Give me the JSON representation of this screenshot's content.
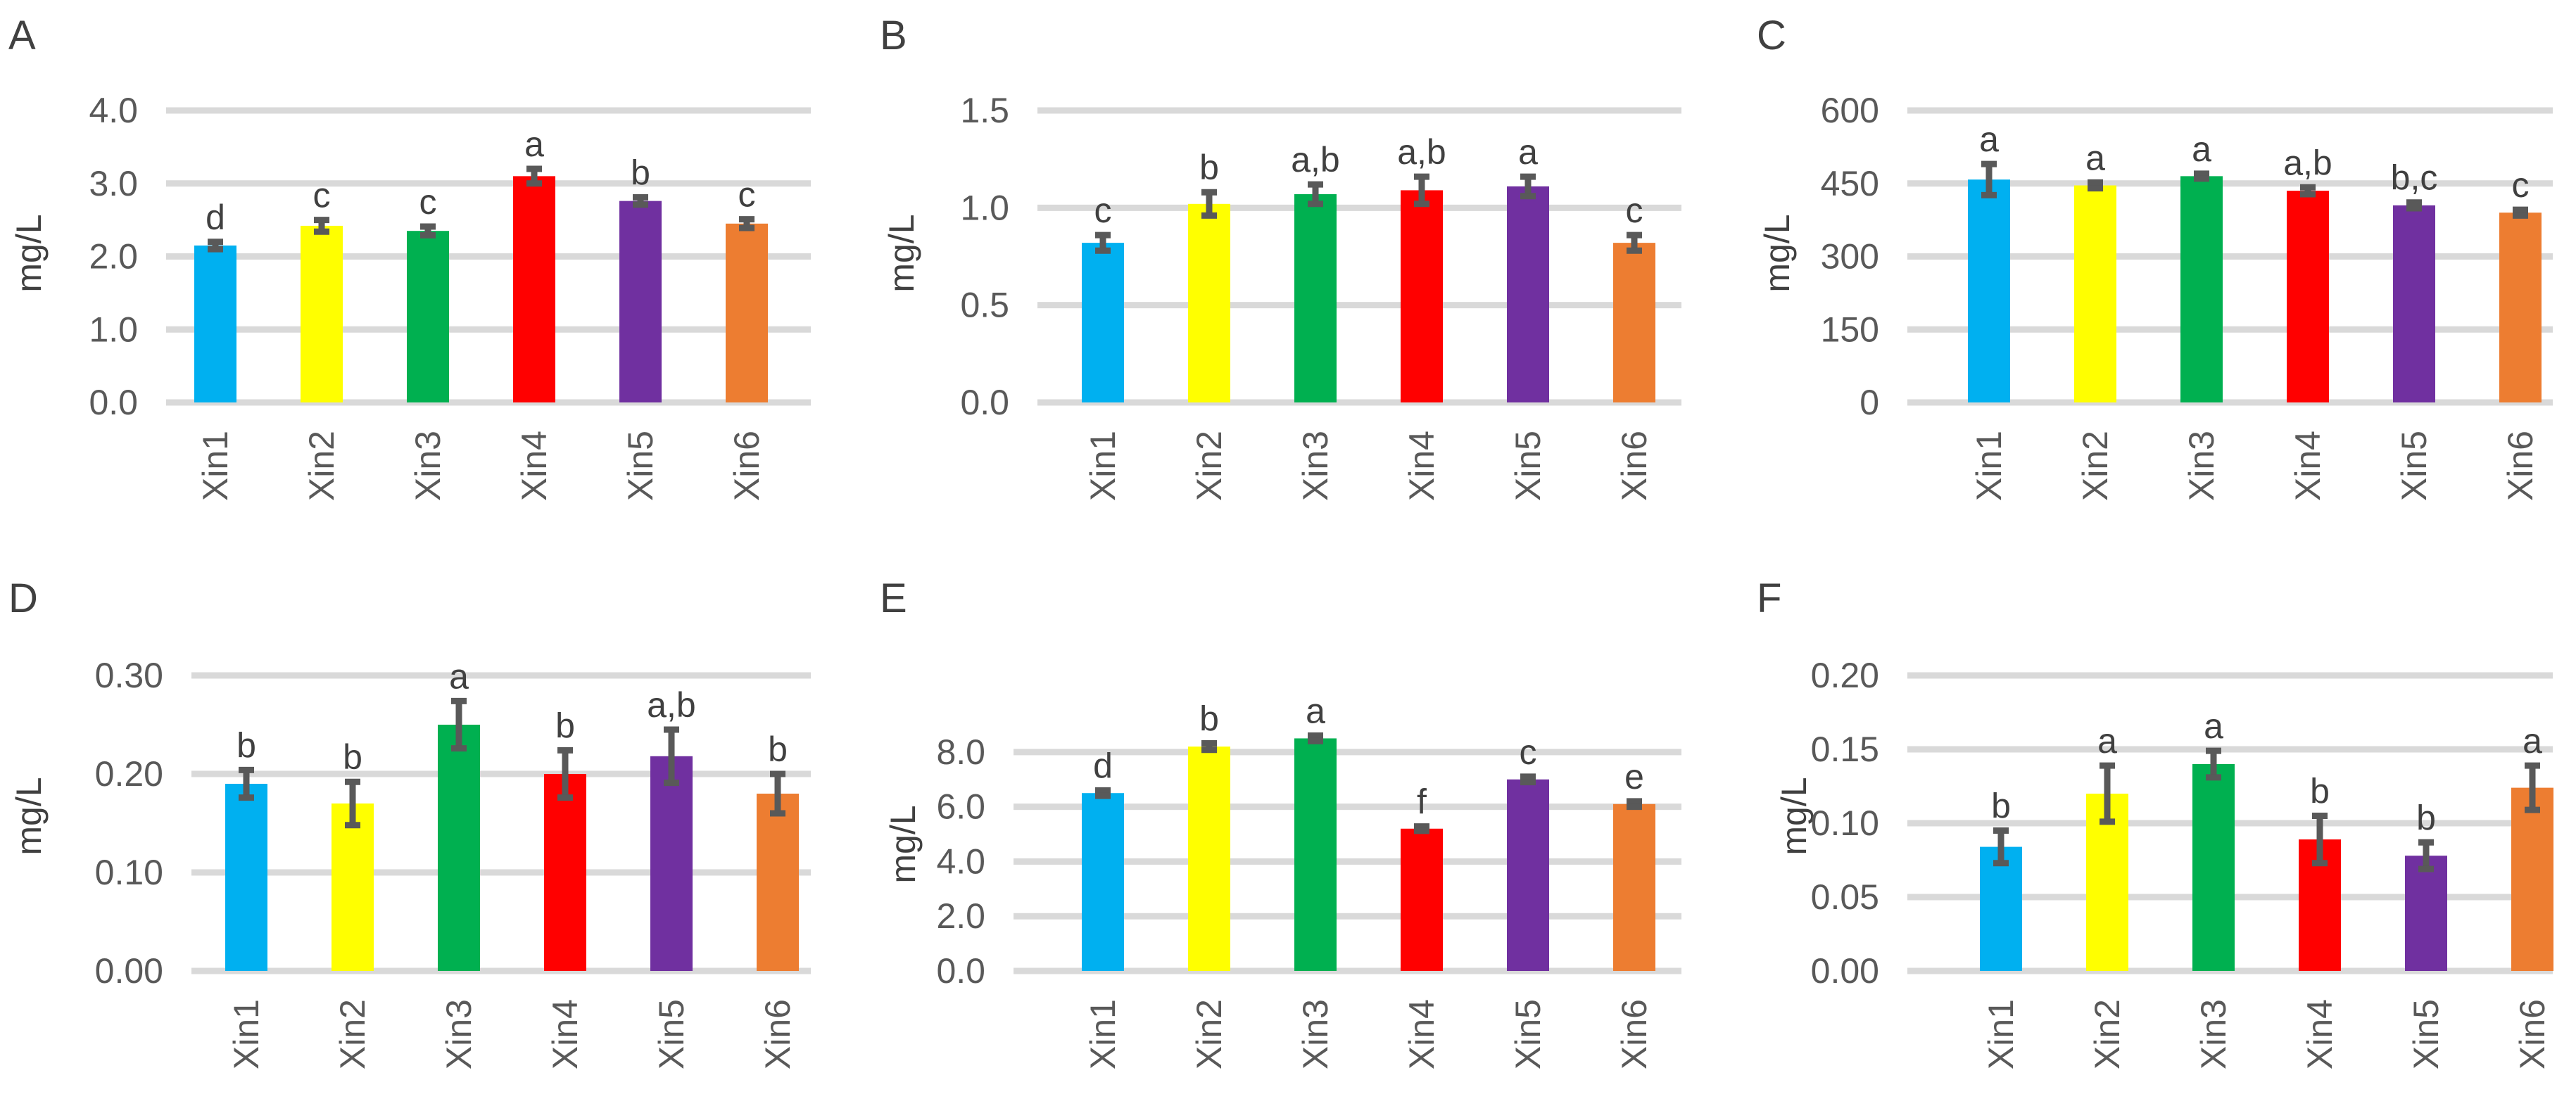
{
  "chart_data": [
    {
      "panel": "A",
      "type": "bar",
      "ylabel": "mg/L",
      "categories": [
        "Xin1",
        "Xin2",
        "Xin3",
        "Xin4",
        "Xin5",
        "Xin6"
      ],
      "values": [
        2.15,
        2.42,
        2.35,
        3.1,
        2.76,
        2.45
      ],
      "errors": [
        0.05,
        0.08,
        0.06,
        0.1,
        0.05,
        0.06
      ],
      "letters": [
        "d",
        "c",
        "c",
        "a",
        "b",
        "c"
      ],
      "ylim": [
        0,
        4.0
      ],
      "yticks": [
        "0.0",
        "1.0",
        "2.0",
        "3.0",
        "4.0"
      ],
      "colors": [
        "#00b0f0",
        "#ffff00",
        "#00b050",
        "#ff0000",
        "#7030a0",
        "#ed7d31"
      ]
    },
    {
      "panel": "B",
      "type": "bar",
      "ylabel": "mg/L",
      "categories": [
        "Xin1",
        "Xin2",
        "Xin3",
        "Xin4",
        "Xin5",
        "Xin6"
      ],
      "values": [
        0.82,
        1.02,
        1.07,
        1.09,
        1.11,
        0.82
      ],
      "errors": [
        0.04,
        0.06,
        0.05,
        0.07,
        0.05,
        0.04
      ],
      "letters": [
        "c",
        "b",
        "a,b",
        "a,b",
        "a",
        "c"
      ],
      "ylim": [
        0,
        1.5
      ],
      "yticks": [
        "0.0",
        "0.5",
        "1.0",
        "1.5"
      ],
      "colors": [
        "#00b0f0",
        "#ffff00",
        "#00b050",
        "#ff0000",
        "#7030a0",
        "#ed7d31"
      ]
    },
    {
      "panel": "C",
      "type": "bar",
      "ylabel": "mg/L",
      "categories": [
        "Xin1",
        "Xin2",
        "Xin3",
        "Xin4",
        "Xin5",
        "Xin6"
      ],
      "values": [
        458,
        446,
        465,
        435,
        405,
        390
      ],
      "errors": [
        32,
        6,
        5,
        7,
        6,
        6
      ],
      "letters": [
        "a",
        "a",
        "a",
        "a,b",
        "b,c",
        "c"
      ],
      "ylim": [
        0,
        600
      ],
      "yticks": [
        "0",
        "150",
        "300",
        "450",
        "600"
      ],
      "colors": [
        "#00b0f0",
        "#ffff00",
        "#00b050",
        "#ff0000",
        "#7030a0",
        "#ed7d31"
      ]
    },
    {
      "panel": "D",
      "type": "bar",
      "ylabel": "mg/L",
      "categories": [
        "Xin1",
        "Xin2",
        "Xin3",
        "Xin4",
        "Xin5",
        "Xin6"
      ],
      "values": [
        0.19,
        0.17,
        0.25,
        0.2,
        0.218,
        0.18
      ],
      "errors": [
        0.014,
        0.022,
        0.024,
        0.024,
        0.027,
        0.02
      ],
      "letters": [
        "b",
        "b",
        "a",
        "b",
        "a,b",
        "b"
      ],
      "ylim": [
        0,
        0.3
      ],
      "yticks": [
        "0.00",
        "0.10",
        "0.20",
        "0.30"
      ],
      "colors": [
        "#00b0f0",
        "#ffff00",
        "#00b050",
        "#ff0000",
        "#7030a0",
        "#ed7d31"
      ]
    },
    {
      "panel": "E",
      "type": "bar",
      "ylabel": "mg/L",
      "categories": [
        "Xin1",
        "Xin2",
        "Xin3",
        "Xin4",
        "Xin5",
        "Xin6"
      ],
      "values": [
        6.5,
        8.2,
        8.5,
        5.2,
        7.0,
        6.1
      ],
      "errors": [
        0.1,
        0.12,
        0.1,
        0.08,
        0.1,
        0.1
      ],
      "letters": [
        "d",
        "b",
        "a",
        "f",
        "c",
        "e"
      ],
      "ylim": [
        0,
        9.0
      ],
      "yticks": [
        "0.0",
        "2.0",
        "4.0",
        "6.0",
        "8.0"
      ],
      "colors": [
        "#00b0f0",
        "#ffff00",
        "#00b050",
        "#ff0000",
        "#7030a0",
        "#ed7d31"
      ]
    },
    {
      "panel": "F",
      "type": "bar",
      "ylabel": "mg/L",
      "categories": [
        "Xin1",
        "Xin2",
        "Xin3",
        "Xin4",
        "Xin5",
        "Xin6"
      ],
      "values": [
        0.084,
        0.12,
        0.14,
        0.089,
        0.078,
        0.124
      ],
      "errors": [
        0.011,
        0.019,
        0.009,
        0.016,
        0.009,
        0.015
      ],
      "letters": [
        "b",
        "a",
        "a",
        "b",
        "b",
        "a"
      ],
      "ylim": [
        0,
        0.2
      ],
      "yticks": [
        "0.00",
        "0.05",
        "0.10",
        "0.15",
        "0.20"
      ],
      "colors": [
        "#00b0f0",
        "#ffff00",
        "#00b050",
        "#ff0000",
        "#7030a0",
        "#ed7d31"
      ]
    }
  ]
}
